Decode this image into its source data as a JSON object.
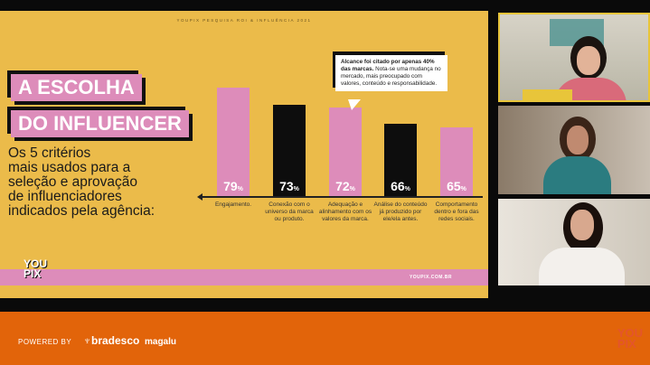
{
  "slide": {
    "subtitle": "YOUPIX PESQUISA ROI & INFLUÊNCIA 2021",
    "title_line1": "A ESCOLHA",
    "title_line2": "DO INFLUENCER",
    "description": [
      "Os 5 critérios",
      "mais usados para a",
      "seleção e aprovação",
      "de influenciadores",
      "indicados pela agência:"
    ],
    "callout_bold": "Alcance foi citado por apenas 40% das marcas.",
    "callout_text": " Nota-se uma mudança no mercado, mais preocupado com valores, conteúdo e responsabilidade.",
    "logo": "YOU PIX",
    "url": "YOUPIX.COM.BR"
  },
  "chart_data": {
    "type": "bar",
    "categories": [
      "Engajamento.",
      "Conexão com o universo da marca ou produto.",
      "Adequação e alinhamento com os valores da marca.",
      "Análise do conteúdo já produzido por ele/ela antes.",
      "Comportamento dentro e fora das redes sociais."
    ],
    "values": [
      79,
      73,
      72,
      66,
      65
    ],
    "value_labels": [
      "79",
      "73",
      "72",
      "66",
      "65"
    ],
    "unit": "%",
    "colors": [
      "#dd8cba",
      "#0d0d0d",
      "#dd8cba",
      "#0d0d0d",
      "#dd8cba"
    ]
  },
  "footer": {
    "powered_by": "POWERED BY",
    "sponsor1": "bradesco",
    "sponsor2": "magalu",
    "logo": "YOU PIX"
  },
  "participants": [
    "participant-1",
    "participant-2",
    "participant-3"
  ],
  "colors": {
    "slide_bg": "#ebbb4a",
    "pink": "#dd8cba",
    "footer": "#e2640a"
  }
}
